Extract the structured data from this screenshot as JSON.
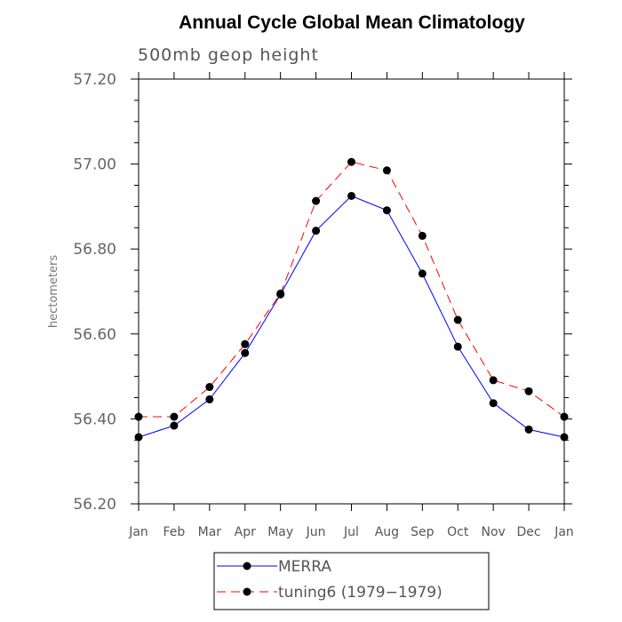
{
  "chart_data": {
    "type": "line",
    "title": "Annual Cycle Global Mean Climatology",
    "subtitle": "500mb geop height",
    "xlabel": "",
    "ylabel": "hectometers",
    "categories": [
      "Jan",
      "Feb",
      "Mar",
      "Apr",
      "May",
      "Jun",
      "Jul",
      "Aug",
      "Sep",
      "Oct",
      "Nov",
      "Dec",
      "Jan"
    ],
    "ylim": [
      56.2,
      57.2
    ],
    "yticks": [
      "56.20",
      "56.40",
      "56.60",
      "56.80",
      "57.00",
      "57.20"
    ],
    "series": [
      {
        "name": "MERRA",
        "color": "#0000ff",
        "style": "solid",
        "values": [
          56.357,
          56.384,
          56.446,
          56.555,
          56.693,
          56.843,
          56.925,
          56.891,
          56.742,
          56.57,
          56.437,
          56.375,
          56.357
        ]
      },
      {
        "name": "tuning6 (1979-1979)",
        "color": "#ff0000",
        "style": "dashed",
        "values": [
          56.405,
          56.405,
          56.475,
          56.576,
          56.695,
          56.913,
          57.005,
          56.985,
          56.831,
          56.633,
          56.491,
          56.465,
          56.405
        ]
      }
    ],
    "legend": {
      "position": "bottom-center",
      "entries": [
        "MERRA",
        "tuning6 (1979−1979)"
      ]
    }
  }
}
